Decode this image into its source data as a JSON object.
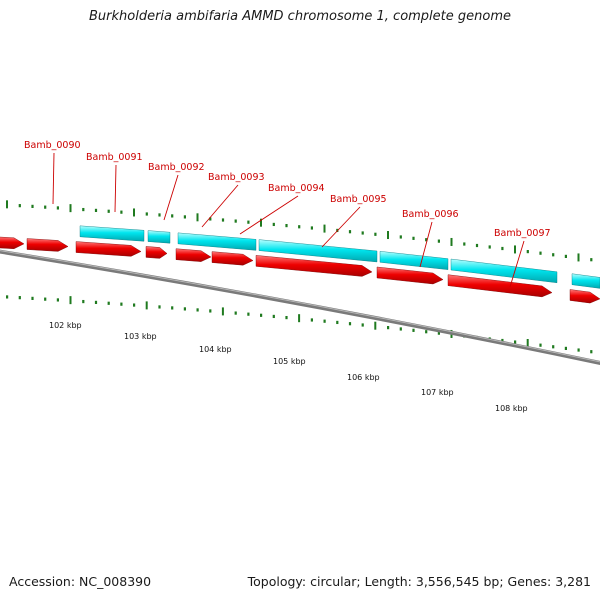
{
  "title": "Burkholderia ambifaria AMMD chromosome 1, complete genome",
  "accession": "Accession: NC_008390",
  "summary": "Topology: circular; Length: 3,556,545 bp; Genes: 3,281",
  "colors": {
    "forward_strand": "#00e5ee",
    "reverse_strand": "#ee0000",
    "backbone": "#7f7f7f",
    "ticks": "#1b7a1b",
    "gene_label": "#cc0000"
  },
  "gene_labels": [
    "Bamb_0090",
    "Bamb_0091",
    "Bamb_0092",
    "Bamb_0093",
    "Bamb_0094",
    "Bamb_0095",
    "Bamb_0096",
    "Bamb_0097"
  ],
  "scale_labels": [
    "102 kbp",
    "103 kbp",
    "104 kbp",
    "105 kbp",
    "106 kbp",
    "107 kbp",
    "108 kbp"
  ]
}
